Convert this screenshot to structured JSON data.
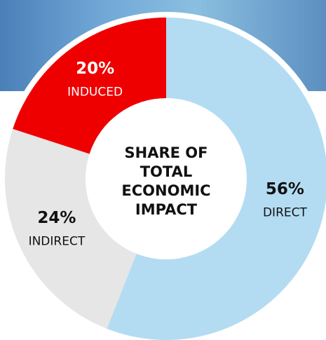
{
  "chart_data": {
    "type": "donut",
    "title": "SHARE OF TOTAL ECONOMIC IMPACT",
    "categories": [
      "DIRECT",
      "INDIRECT",
      "INDUCED"
    ],
    "values": [
      56,
      24,
      20
    ],
    "value_labels": [
      "56%",
      "24%",
      "20%"
    ],
    "colors": [
      "#b3dcf2",
      "#e5e6e5",
      "#ee0000"
    ]
  }
}
